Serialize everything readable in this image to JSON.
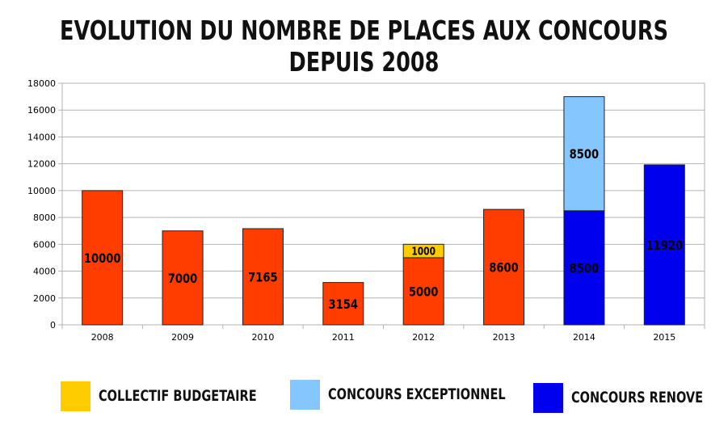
{
  "title": "EVOLUTION DU NOMBRE DE PLACES AUX CONCOURS DEPUIS 2008",
  "chart_data": {
    "type": "bar",
    "stacked": true,
    "categories": [
      "2008",
      "2009",
      "2010",
      "2011",
      "2012",
      "2013",
      "2014",
      "2015"
    ],
    "ylim": [
      0,
      18000
    ],
    "yticks": [
      0,
      2000,
      4000,
      6000,
      8000,
      10000,
      12000,
      14000,
      16000,
      18000
    ],
    "grid": true,
    "legend_position": "bottom",
    "series": [
      {
        "name": "",
        "color": "#ff3d00",
        "values": [
          10000,
          7000,
          7165,
          3154,
          5000,
          8600,
          null,
          null
        ]
      },
      {
        "name": "COLLECTIF BUDGETAIRE",
        "color": "#ffcc00",
        "values": [
          null,
          null,
          null,
          null,
          1000,
          null,
          null,
          null
        ]
      },
      {
        "name": "CONCOURS RENOVE",
        "color": "#0000ee",
        "values": [
          null,
          null,
          null,
          null,
          null,
          null,
          8500,
          11920
        ]
      },
      {
        "name": "CONCOURS EXCEPTIONNEL",
        "color": "#85c6ff",
        "values": [
          null,
          null,
          null,
          null,
          null,
          null,
          8500,
          null
        ]
      }
    ]
  },
  "legend": [
    {
      "label": "COLLECTIF BUDGETAIRE",
      "color": "#ffcc00"
    },
    {
      "label": "CONCOURS EXCEPTIONNEL",
      "color": "#85c6ff"
    },
    {
      "label": "CONCOURS RENOVE",
      "color": "#0000ee"
    }
  ]
}
